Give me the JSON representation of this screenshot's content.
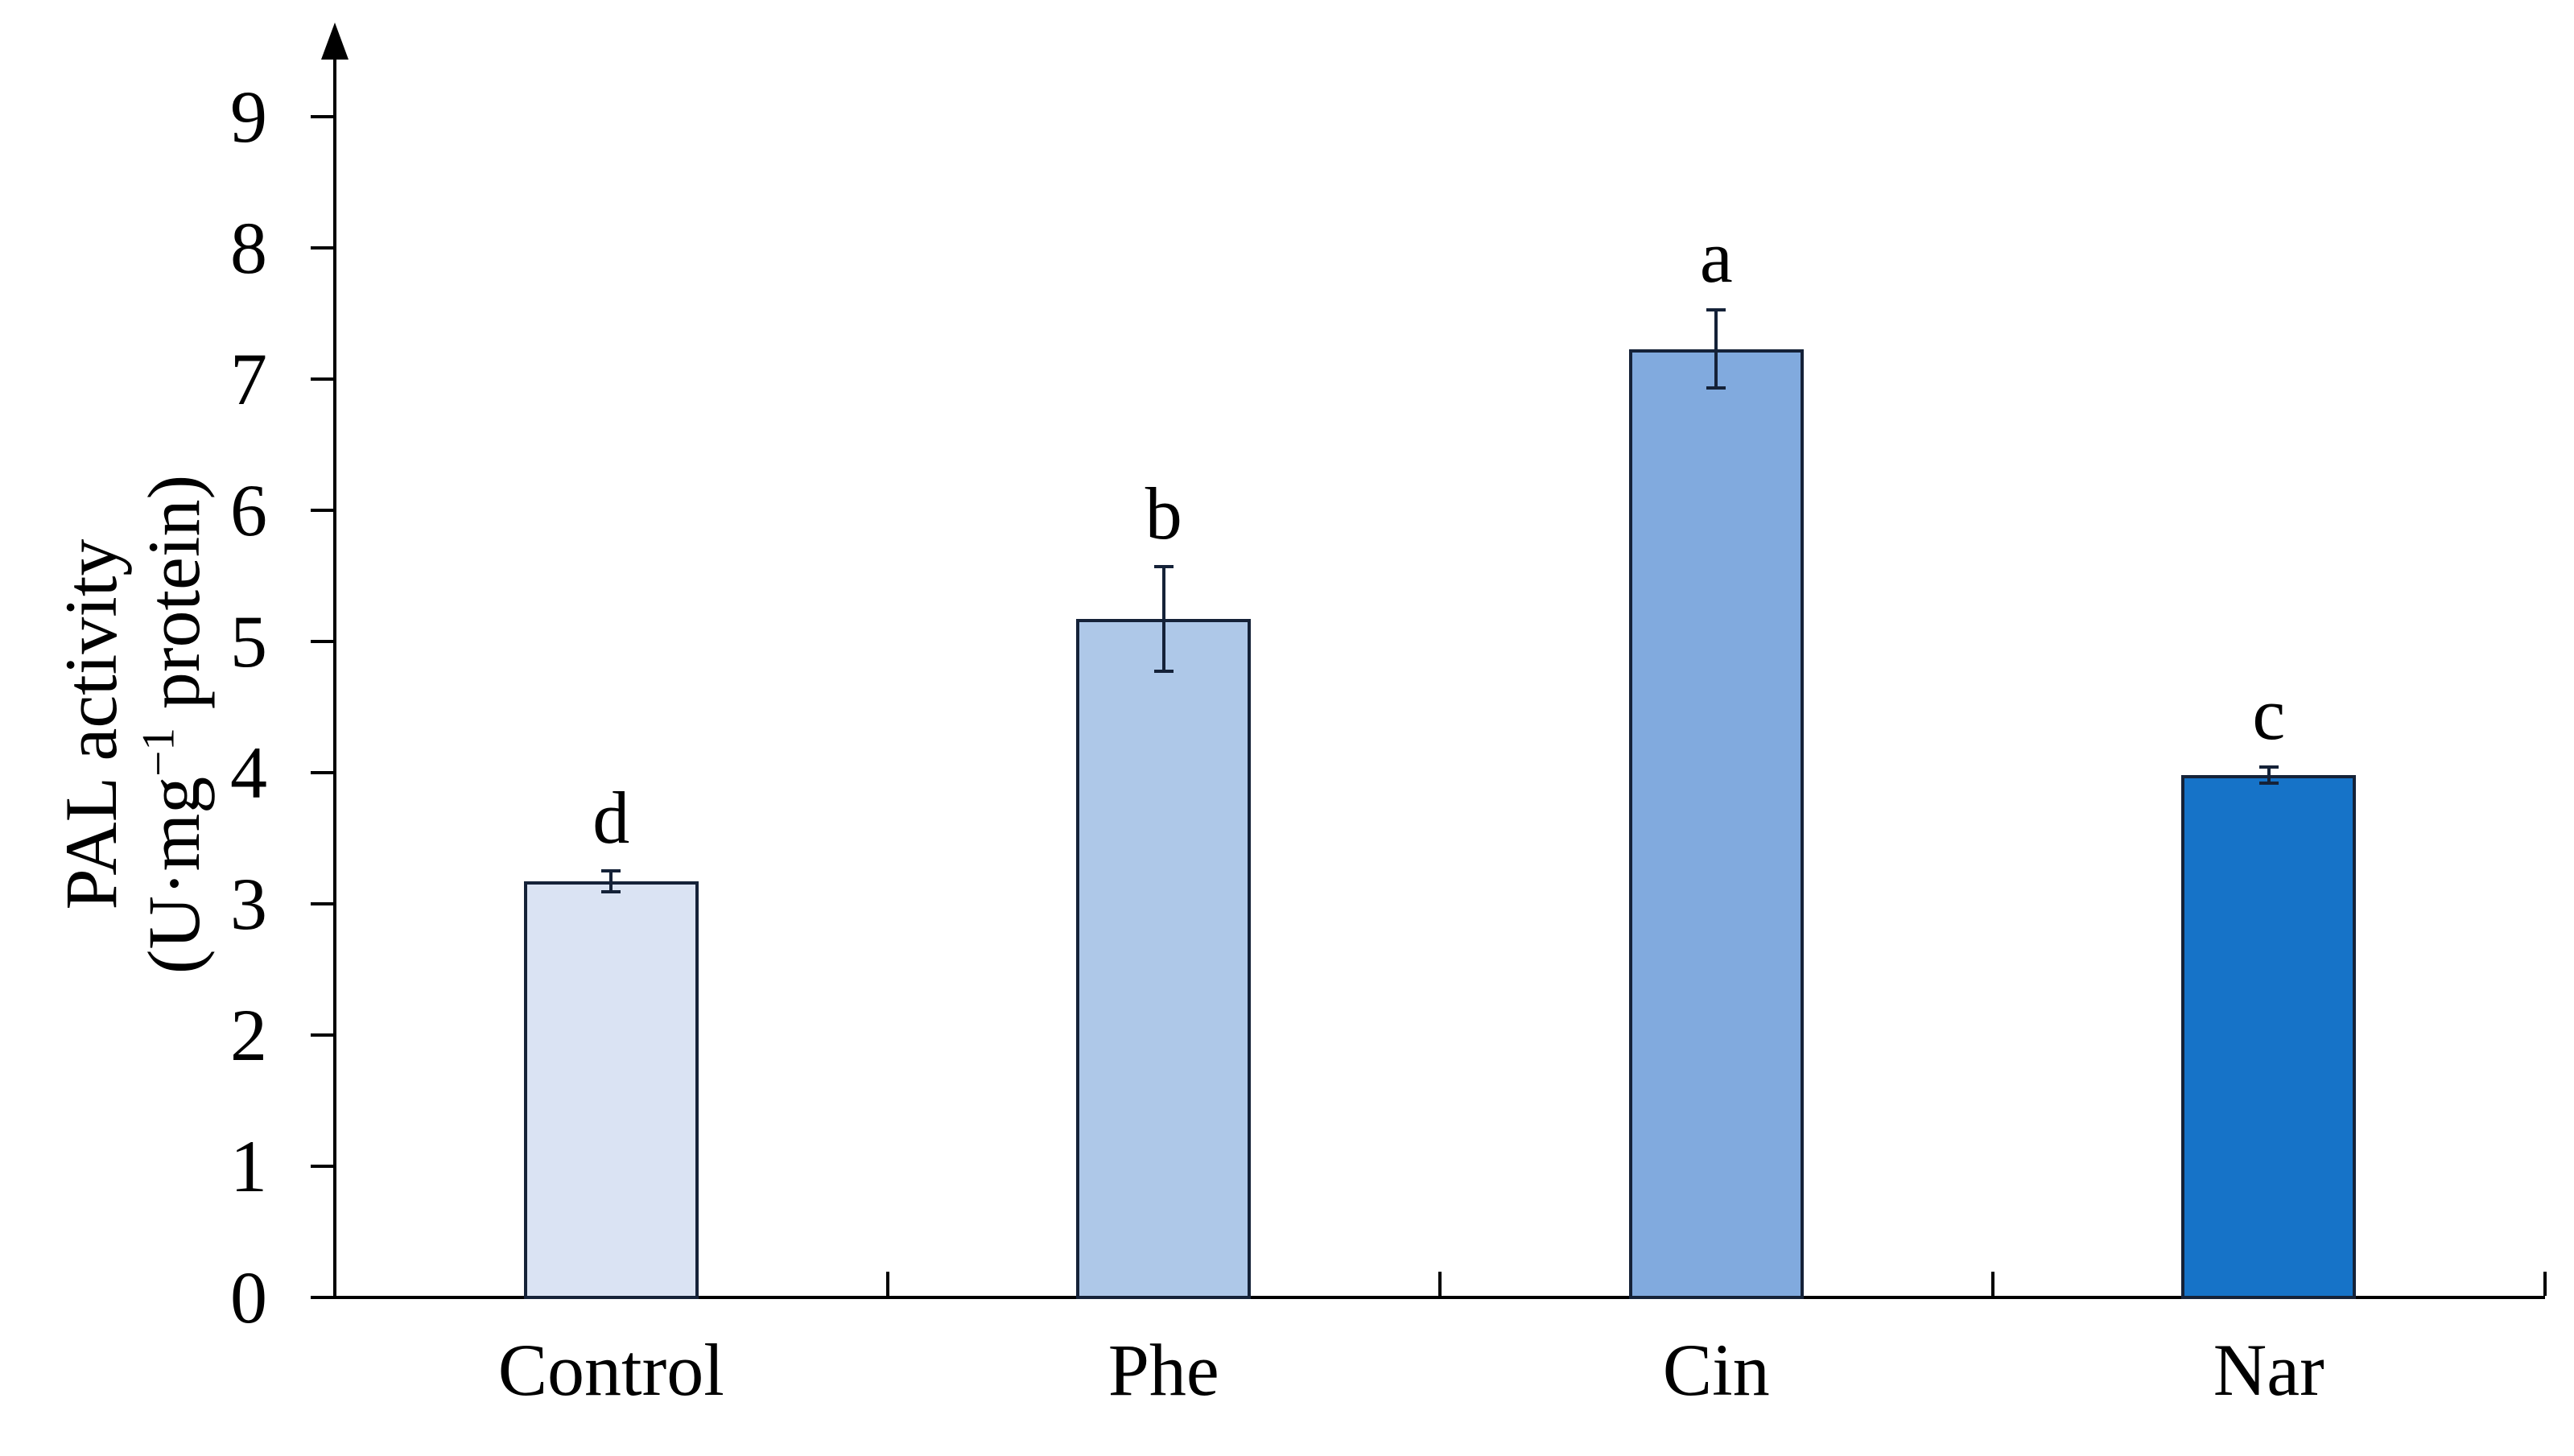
{
  "figure": {
    "background": "#ffffff",
    "axis_color": "#000000",
    "bar_border_color": "#152238",
    "error_bar_color": "#152238",
    "text_color": "#000000"
  },
  "y_axis": {
    "label_line1": "PAL activity",
    "label_line2_prefix": "(U·mg",
    "label_line2_sup": "−1",
    "label_line2_suffix": " protein)",
    "tick_labels": [
      "0",
      "1",
      "2",
      "3",
      "4",
      "5",
      "6",
      "7",
      "8",
      "9"
    ]
  },
  "chart_data": {
    "type": "bar",
    "title": "",
    "xlabel": "",
    "ylabel": "PAL activity (U·mg⁻¹ protein)",
    "categories": [
      "Control",
      "Phe",
      "Cin",
      "Nar"
    ],
    "values": [
      3.17,
      5.17,
      7.23,
      3.98
    ],
    "error_bars": [
      0.08,
      0.4,
      0.3,
      0.06
    ],
    "sig_letters": [
      "d",
      "b",
      "a",
      "c"
    ],
    "bar_colors": [
      "#DAE3F3",
      "#AEC8E8",
      "#81AADE",
      "#1673C8"
    ],
    "ylim": [
      0,
      9
    ],
    "yticks": [
      0,
      1,
      2,
      3,
      4,
      5,
      6,
      7,
      8,
      9
    ],
    "grid": false,
    "legend": "none"
  }
}
